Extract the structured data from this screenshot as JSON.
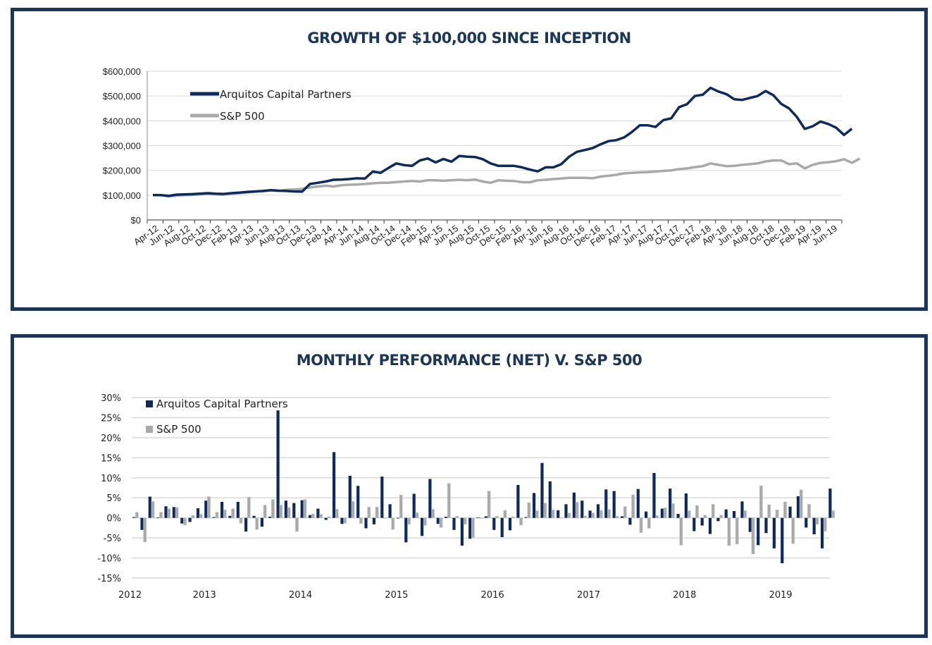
{
  "colors": {
    "frame": "#1b3656",
    "fund": "#0e2a5c",
    "sp500": "#a9a9a9",
    "grid": "#d9d9d9",
    "title": "#1b3656"
  },
  "chart_data": [
    {
      "type": "line",
      "title": "GROWTH OF $100,000 SINCE INCEPTION",
      "xlabel": "",
      "ylabel": "",
      "ylim": [
        0,
        600000
      ],
      "yticks": [
        0,
        100000,
        200000,
        300000,
        400000,
        500000,
        600000
      ],
      "ytick_labels": [
        "$0",
        "$100,000",
        "$200,000",
        "$300,000",
        "$400,000",
        "$500,000",
        "$600,000"
      ],
      "x": [
        "Apr-12",
        "May-12",
        "Jun-12",
        "Jul-12",
        "Aug-12",
        "Sep-12",
        "Oct-12",
        "Nov-12",
        "Dec-12",
        "Jan-13",
        "Feb-13",
        "Mar-13",
        "Apr-13",
        "May-13",
        "Jun-13",
        "Jul-13",
        "Aug-13",
        "Sep-13",
        "Oct-13",
        "Nov-13",
        "Dec-13",
        "Jan-14",
        "Feb-14",
        "Mar-14",
        "Apr-14",
        "May-14",
        "Jun-14",
        "Jul-14",
        "Aug-14",
        "Sep-14",
        "Oct-14",
        "Nov-14",
        "Dec-14",
        "Jan-15",
        "Feb-15",
        "Mar-15",
        "Apr-15",
        "May-15",
        "Jun-15",
        "Jul-15",
        "Aug-15",
        "Sep-15",
        "Oct-15",
        "Nov-15",
        "Dec-15",
        "Jan-16",
        "Feb-16",
        "Mar-16",
        "Apr-16",
        "May-16",
        "Jun-16",
        "Jul-16",
        "Aug-16",
        "Sep-16",
        "Oct-16",
        "Nov-16",
        "Dec-16",
        "Jan-17",
        "Feb-17",
        "Mar-17",
        "Apr-17",
        "May-17",
        "Jun-17",
        "Jul-17",
        "Aug-17",
        "Sep-17",
        "Oct-17",
        "Nov-17",
        "Dec-17",
        "Jan-18",
        "Feb-18",
        "Mar-18",
        "Apr-18",
        "May-18",
        "Jun-18",
        "Jul-18",
        "Aug-18",
        "Sep-18",
        "Oct-18",
        "Nov-18",
        "Dec-18",
        "Jan-19",
        "Feb-19",
        "Mar-19",
        "Apr-19",
        "May-19",
        "Jun-19",
        "Jul-19"
      ],
      "xtick_labels": [
        "Apr-12",
        "Jun-12",
        "Aug-12",
        "Oct-12",
        "Dec-12",
        "Feb-13",
        "Apr-13",
        "Jun-13",
        "Aug-13",
        "Oct-13",
        "Dec-13",
        "Feb-14",
        "Apr-14",
        "Jun-14",
        "Aug-14",
        "Oct-14",
        "Dec-14",
        "Feb-15",
        "Apr-15",
        "Jun-15",
        "Aug-15",
        "Oct-15",
        "Dec-15",
        "Feb-16",
        "Apr-16",
        "Jun-16",
        "Aug-16",
        "Oct-16",
        "Dec-16",
        "Feb-17",
        "Apr-17",
        "Jun-17",
        "Aug-17",
        "Oct-17",
        "Dec-17",
        "Feb-18",
        "Apr-18",
        "Jun-18",
        "Aug-18",
        "Oct-18",
        "Dec-18",
        "Feb-19",
        "Apr-19",
        "Jun-19"
      ],
      "legend": "top-left",
      "grid": true,
      "series": [
        {
          "name": "Arquitos Capital Partners",
          "color": "#0e2a5c",
          "values": [
            100000,
            100000,
            97000,
            102000,
            103000,
            104000,
            106000,
            108000,
            106000,
            105000,
            108000,
            110000,
            113000,
            115000,
            117000,
            120000,
            118000,
            117000,
            115000,
            114000,
            145000,
            150000,
            155000,
            162000,
            163000,
            165000,
            168000,
            167000,
            195000,
            190000,
            210000,
            228000,
            221000,
            218000,
            240000,
            248000,
            232000,
            246000,
            235000,
            258000,
            255000,
            254000,
            245000,
            228000,
            218000,
            218000,
            218000,
            212000,
            203000,
            196000,
            212000,
            212000,
            225000,
            255000,
            275000,
            282000,
            290000,
            305000,
            318000,
            322000,
            333000,
            355000,
            382000,
            382000,
            375000,
            403000,
            410000,
            455000,
            467000,
            500000,
            505000,
            533000,
            518000,
            508000,
            487000,
            484000,
            492000,
            500000,
            520000,
            503000,
            468000,
            450000,
            415000,
            367000,
            378000,
            397000,
            387000,
            372000,
            343000,
            368000
          ]
        },
        {
          "name": "S&P 500",
          "color": "#a9a9a9",
          "values": [
            100000,
            100000,
            95000,
            98000,
            100000,
            101000,
            103000,
            105000,
            103000,
            102000,
            106000,
            108000,
            111000,
            114000,
            116000,
            119000,
            117000,
            121000,
            123000,
            125000,
            131000,
            135000,
            138000,
            135000,
            140000,
            142000,
            143000,
            145000,
            148000,
            150000,
            150000,
            153000,
            155000,
            157000,
            155000,
            160000,
            160000,
            158000,
            160000,
            162000,
            160000,
            163000,
            155000,
            150000,
            160000,
            158000,
            157000,
            152000,
            152000,
            160000,
            162000,
            165000,
            167000,
            170000,
            170000,
            170000,
            168000,
            175000,
            178000,
            182000,
            188000,
            190000,
            192000,
            193000,
            195000,
            198000,
            200000,
            205000,
            208000,
            213000,
            217000,
            228000,
            222000,
            217000,
            218000,
            222000,
            225000,
            228000,
            236000,
            240000,
            240000,
            225000,
            228000,
            208000,
            222000,
            230000,
            233000,
            237000,
            245000,
            230000,
            248000
          ]
        }
      ]
    },
    {
      "type": "bar",
      "title": "MONTHLY PERFORMANCE (NET) V. S&P 500",
      "xlabel": "",
      "ylabel": "",
      "ylim": [
        -15,
        30
      ],
      "yticks": [
        -15,
        -10,
        -5,
        0,
        5,
        10,
        15,
        20,
        25,
        30
      ],
      "ytick_labels": [
        "-15%",
        "-10%",
        "-5%",
        "0%",
        "5%",
        "10%",
        "15%",
        "20%",
        "25%",
        "30%"
      ],
      "year_labels": [
        "2012",
        "2013",
        "2014",
        "2015",
        "2016",
        "2017",
        "2018",
        "2019"
      ],
      "first_month": "Apr-2012",
      "legend": "top-left",
      "grid": true,
      "series": [
        {
          "name": "Arquitos Capital Partners",
          "color": "#0e2a5c",
          "values": [
            0.2,
            -3.0,
            5.3,
            0.1,
            2.9,
            2.7,
            -1.4,
            -1.0,
            2.4,
            4.3,
            0.2,
            4.0,
            0.5,
            4.0,
            -3.4,
            0.5,
            -2.2,
            0.3,
            26.8,
            4.3,
            3.7,
            4.4,
            0.7,
            2.3,
            -0.5,
            16.4,
            -1.5,
            10.5,
            8.0,
            -2.6,
            -1.6,
            10.3,
            3.4,
            0.0,
            -6.1,
            6.0,
            -4.5,
            9.7,
            -1.5,
            0.3,
            -3.0,
            -6.9,
            -5.2,
            0.1,
            0.4,
            -3.0,
            -4.8,
            -3.1,
            8.2,
            0.2,
            6.2,
            13.7,
            9.1,
            1.9,
            3.4,
            6.3,
            4.3,
            1.8,
            3.4,
            7.1,
            6.7,
            0.4,
            -1.7,
            7.2,
            1.6,
            11.2,
            2.3,
            7.3,
            1.0,
            6.1,
            -3.3,
            -1.9,
            -4.0,
            -0.8,
            2.1,
            1.7,
            4.1,
            -3.5,
            -6.8,
            -3.8,
            -7.6,
            -11.3,
            2.8,
            5.4,
            -2.4,
            -4.1,
            -7.6,
            7.3
          ]
        },
        {
          "name": "S&P 500",
          "color": "#a9a9a9",
          "values": [
            1.4,
            -6.0,
            4.1,
            1.4,
            2.3,
            2.6,
            -1.8,
            0.6,
            0.9,
            5.3,
            1.4,
            2.0,
            2.3,
            -1.3,
            5.2,
            -2.9,
            3.2,
            4.6,
            3.2,
            2.6,
            -3.4,
            4.6,
            1.0,
            0.9,
            0.3,
            2.2,
            -1.3,
            4.1,
            -1.4,
            2.7,
            2.7,
            -0.1,
            -2.9,
            5.7,
            -1.6,
            1.3,
            -1.9,
            2.2,
            -2.4,
            8.6,
            0.4,
            -1.6,
            -4.9,
            -0.1,
            6.7,
            0.4,
            1.9,
            0.3,
            -1.8,
            3.8,
            1.8,
            3.7,
            2.0,
            0.1,
            1.2,
            3.9,
            0.5,
            1.2,
            1.9,
            2.1,
            0.4,
            2.8,
            5.8,
            -3.7,
            -2.6,
            0.6,
            2.5,
            3.6,
            -6.8,
            1.8,
            3.1,
            0.7,
            3.4,
            0.7,
            -6.9,
            -6.5,
            1.8,
            -9.0,
            8.0,
            3.3,
            2.0,
            4.0,
            -6.4,
            7.0,
            3.4,
            -1.6,
            -3.3,
            1.8
          ]
        }
      ]
    }
  ]
}
